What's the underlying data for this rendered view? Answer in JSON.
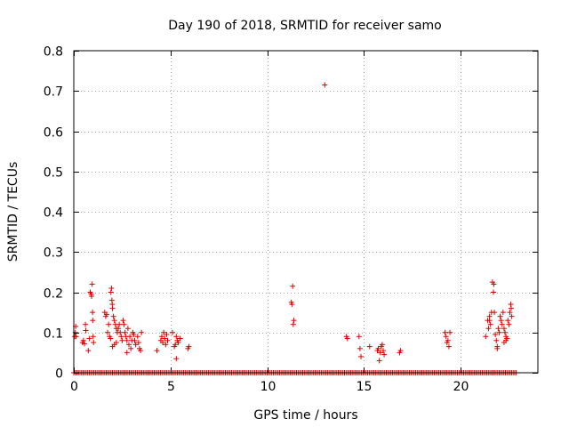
{
  "chart_data": {
    "type": "scatter",
    "title": "Day 190 of 2018, SRMTID for receiver samo",
    "xlabel": "GPS time / hours",
    "ylabel": "SRMTID / TECUs",
    "xlim": [
      0,
      24
    ],
    "ylim": [
      0,
      0.8
    ],
    "xticks": [
      0,
      5,
      10,
      15,
      20
    ],
    "xtick_labels": [
      "0",
      "5",
      "10",
      "15",
      "20"
    ],
    "yticks": [
      0,
      0.1,
      0.2,
      0.3,
      0.4,
      0.5,
      0.6,
      0.7,
      0.8
    ],
    "ytick_labels": [
      "0",
      "0.1",
      "0.2",
      "0.3",
      "0.4",
      "0.5",
      "0.6",
      "0.7",
      "0.8"
    ],
    "grid": true,
    "marker": "+",
    "color": "#e00000",
    "zero_baseline_range": [
      0,
      22.9
    ],
    "series": [
      {
        "name": "SRMTID",
        "points": [
          [
            0.05,
            0.09
          ],
          [
            0.08,
            0.1
          ],
          [
            0.1,
            0.115
          ],
          [
            0.12,
            0.09
          ],
          [
            0.45,
            0.075
          ],
          [
            0.5,
            0.08
          ],
          [
            0.55,
            0.072
          ],
          [
            0.6,
            0.12
          ],
          [
            0.62,
            0.105
          ],
          [
            0.85,
            0.2
          ],
          [
            0.9,
            0.195
          ],
          [
            0.92,
            0.19
          ],
          [
            0.95,
            0.22
          ],
          [
            0.97,
            0.15
          ],
          [
            0.98,
            0.13
          ],
          [
            1.0,
            0.09
          ],
          [
            0.8,
            0.085
          ],
          [
            0.75,
            0.055
          ],
          [
            1.02,
            0.075
          ],
          [
            1.6,
            0.15
          ],
          [
            1.65,
            0.14
          ],
          [
            1.7,
            0.145
          ],
          [
            1.75,
            0.1
          ],
          [
            1.8,
            0.12
          ],
          [
            1.85,
            0.09
          ],
          [
            1.9,
            0.085
          ],
          [
            1.92,
            0.2
          ],
          [
            1.95,
            0.21
          ],
          [
            1.97,
            0.18
          ],
          [
            1.99,
            0.17
          ],
          [
            2.0,
            0.16
          ],
          [
            2.05,
            0.14
          ],
          [
            2.1,
            0.13
          ],
          [
            2.15,
            0.12
          ],
          [
            2.2,
            0.11
          ],
          [
            2.25,
            0.1
          ],
          [
            2.3,
            0.11
          ],
          [
            2.35,
            0.12
          ],
          [
            2.4,
            0.1
          ],
          [
            2.45,
            0.09
          ],
          [
            2.5,
            0.08
          ],
          [
            2.55,
            0.13
          ],
          [
            2.6,
            0.12
          ],
          [
            2.65,
            0.1
          ],
          [
            2.7,
            0.09
          ],
          [
            2.75,
            0.08
          ],
          [
            2.8,
            0.11
          ],
          [
            2.85,
            0.07
          ],
          [
            2.9,
            0.09
          ],
          [
            2.95,
            0.06
          ],
          [
            3.0,
            0.08
          ],
          [
            3.05,
            0.1
          ],
          [
            3.1,
            0.095
          ],
          [
            3.15,
            0.08
          ],
          [
            3.2,
            0.07
          ],
          [
            3.3,
            0.09
          ],
          [
            3.35,
            0.075
          ],
          [
            3.4,
            0.06
          ],
          [
            3.45,
            0.055
          ],
          [
            3.5,
            0.1
          ],
          [
            2.0,
            0.065
          ],
          [
            2.1,
            0.07
          ],
          [
            2.2,
            0.075
          ],
          [
            2.75,
            0.05
          ],
          [
            4.3,
            0.055
          ],
          [
            4.5,
            0.08
          ],
          [
            4.55,
            0.09
          ],
          [
            4.6,
            0.075
          ],
          [
            4.65,
            0.1
          ],
          [
            4.7,
            0.085
          ],
          [
            4.75,
            0.07
          ],
          [
            4.8,
            0.095
          ],
          [
            4.85,
            0.08
          ],
          [
            5.1,
            0.1
          ],
          [
            5.2,
            0.065
          ],
          [
            5.25,
            0.07
          ],
          [
            5.3,
            0.09
          ],
          [
            5.35,
            0.08
          ],
          [
            5.4,
            0.075
          ],
          [
            5.3,
            0.035
          ],
          [
            5.5,
            0.085
          ],
          [
            5.9,
            0.06
          ],
          [
            5.95,
            0.065
          ],
          [
            11.25,
            0.175
          ],
          [
            11.28,
            0.17
          ],
          [
            11.32,
            0.215
          ],
          [
            11.35,
            0.12
          ],
          [
            11.38,
            0.13
          ],
          [
            12.98,
            0.715
          ],
          [
            14.1,
            0.09
          ],
          [
            14.15,
            0.085
          ],
          [
            14.75,
            0.09
          ],
          [
            14.8,
            0.06
          ],
          [
            14.85,
            0.04
          ],
          [
            15.3,
            0.065
          ],
          [
            15.7,
            0.055
          ],
          [
            15.75,
            0.06
          ],
          [
            15.8,
            0.03
          ],
          [
            15.85,
            0.05
          ],
          [
            15.9,
            0.065
          ],
          [
            15.95,
            0.07
          ],
          [
            16.0,
            0.055
          ],
          [
            16.05,
            0.045
          ],
          [
            16.85,
            0.05
          ],
          [
            16.9,
            0.055
          ],
          [
            19.2,
            0.1
          ],
          [
            19.25,
            0.09
          ],
          [
            19.3,
            0.075
          ],
          [
            19.35,
            0.08
          ],
          [
            19.4,
            0.065
          ],
          [
            19.45,
            0.1
          ],
          [
            21.3,
            0.09
          ],
          [
            21.4,
            0.13
          ],
          [
            21.5,
            0.14
          ],
          [
            21.55,
            0.12
          ],
          [
            21.6,
            0.15
          ],
          [
            21.65,
            0.225
          ],
          [
            21.7,
            0.2
          ],
          [
            21.72,
            0.22
          ],
          [
            21.75,
            0.15
          ],
          [
            21.8,
            0.095
          ],
          [
            21.85,
            0.08
          ],
          [
            21.9,
            0.065
          ],
          [
            21.95,
            0.11
          ],
          [
            22.0,
            0.1
          ],
          [
            22.05,
            0.14
          ],
          [
            22.1,
            0.13
          ],
          [
            22.15,
            0.12
          ],
          [
            22.2,
            0.15
          ],
          [
            22.25,
            0.11
          ],
          [
            22.3,
            0.1
          ],
          [
            22.35,
            0.09
          ],
          [
            22.4,
            0.085
          ],
          [
            22.45,
            0.13
          ],
          [
            22.5,
            0.12
          ],
          [
            22.55,
            0.15
          ],
          [
            22.6,
            0.17
          ],
          [
            22.62,
            0.16
          ],
          [
            22.65,
            0.14
          ],
          [
            22.35,
            0.08
          ],
          [
            22.25,
            0.075
          ],
          [
            21.9,
            0.06
          ],
          [
            21.5,
            0.13
          ],
          [
            21.45,
            0.11
          ]
        ]
      }
    ]
  }
}
